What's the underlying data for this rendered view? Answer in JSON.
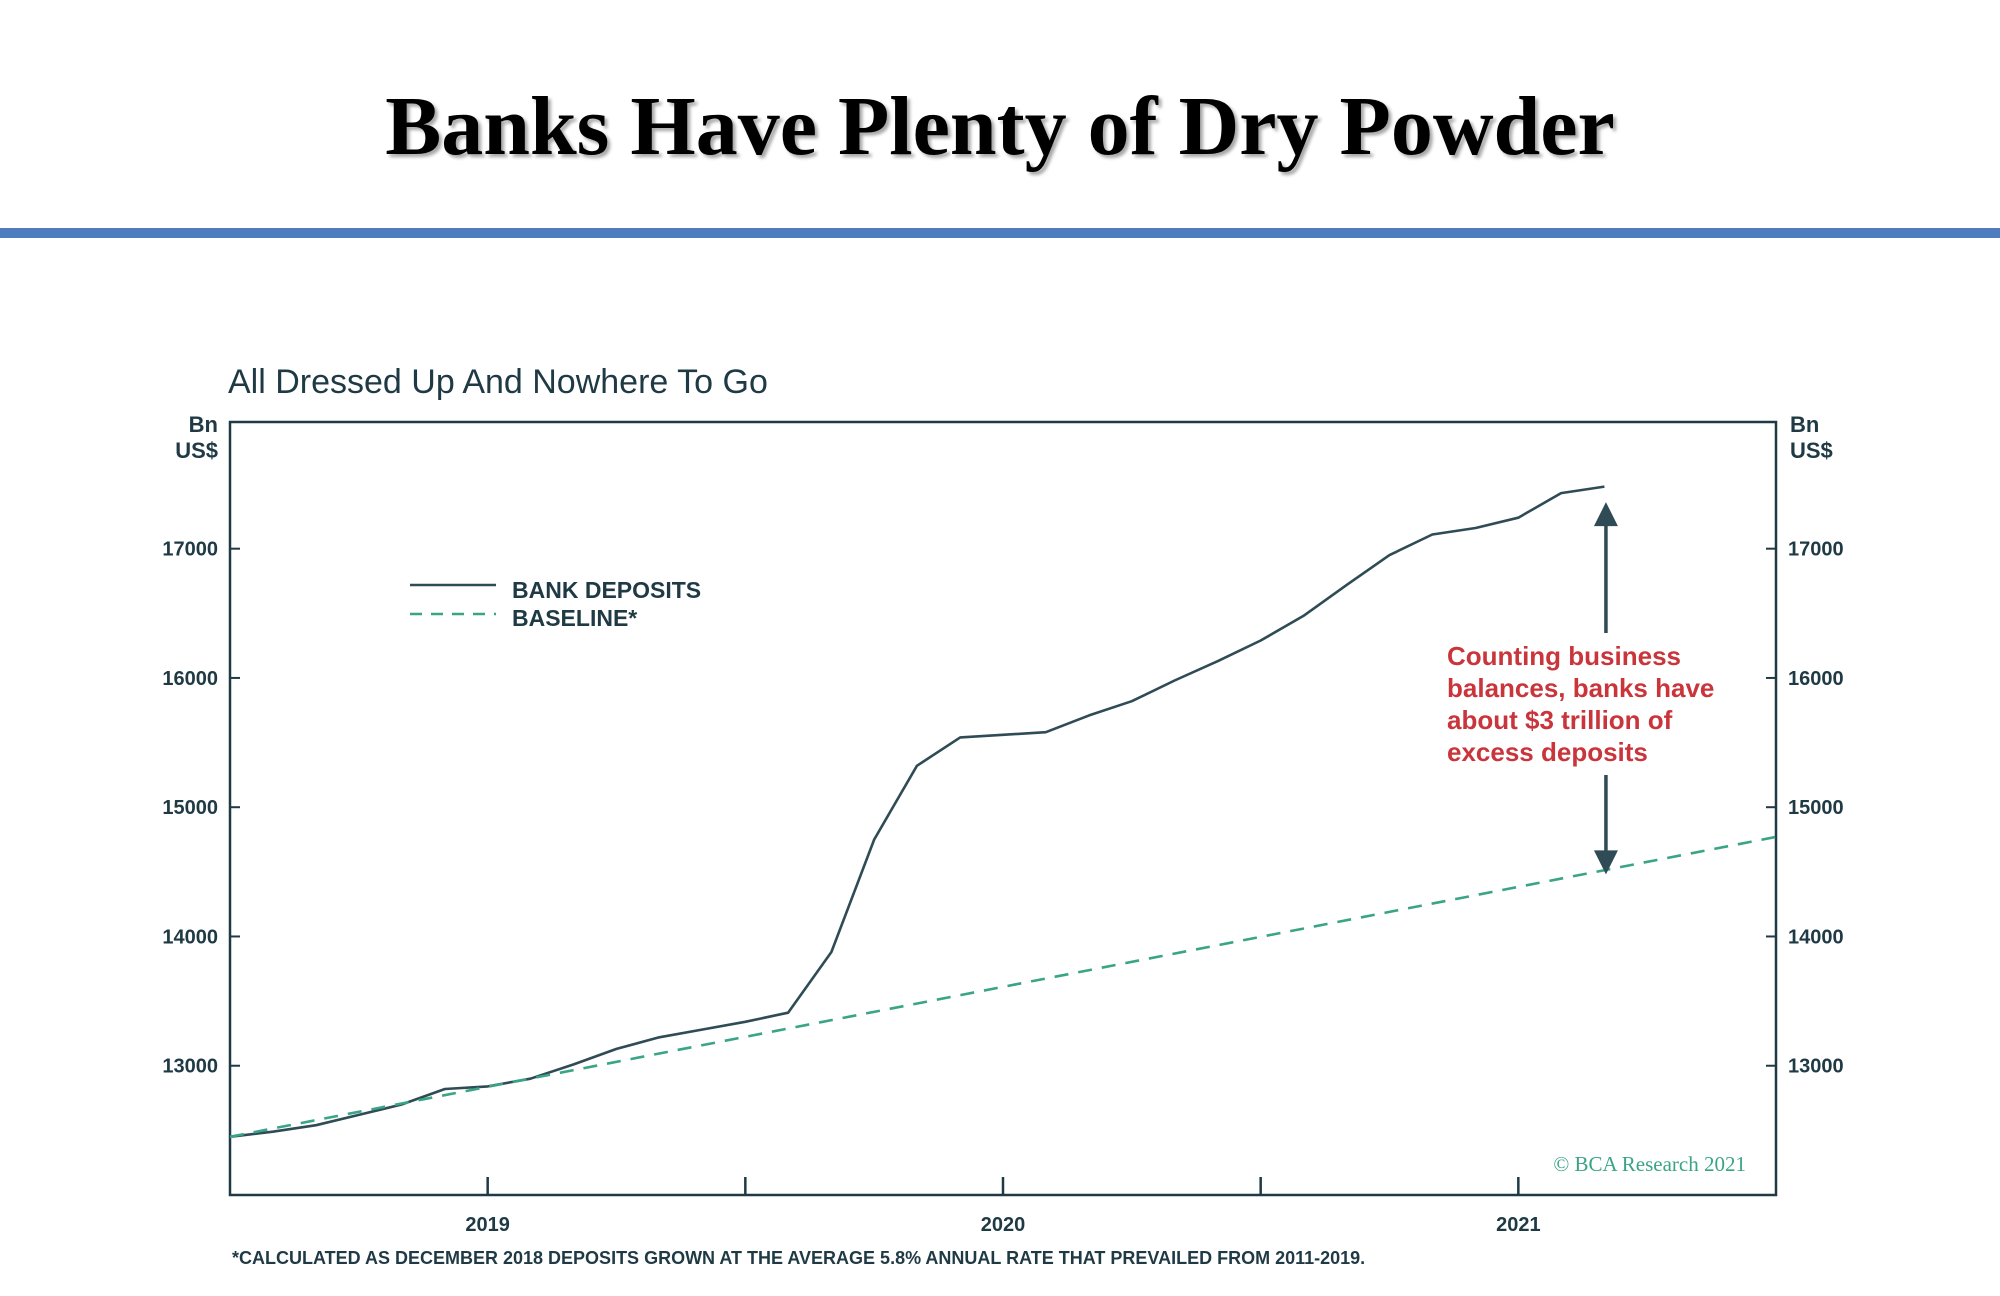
{
  "slide": {
    "title": "Banks Have Plenty of Dry Powder"
  },
  "colors": {
    "rule": "#4f7bbf",
    "deposits": "#2f4b55",
    "baseline": "#3aa486",
    "annotation": "#c9353b",
    "axis": "#1f3a44"
  },
  "chart_data": {
    "type": "line",
    "title": "All Dressed Up And Nowhere To Go",
    "ylabel_left": [
      "Bn",
      "US$"
    ],
    "ylabel_right": [
      "Bn",
      "US$"
    ],
    "ylim": [
      12000,
      17980
    ],
    "xlim": [
      2018.5,
      2021.5
    ],
    "yticks": [
      13000,
      14000,
      15000,
      16000,
      17000
    ],
    "ytick_labels": [
      "13000",
      "14000",
      "15000",
      "16000",
      "17000"
    ],
    "xticks": [
      2019,
      2019.5,
      2020,
      2020.5,
      2021
    ],
    "xtick_labels": [
      "2019",
      "",
      "2020",
      "",
      "2021"
    ],
    "grid": false,
    "legend_position": "upper-left",
    "series": [
      {
        "name": "BANK DEPOSITS",
        "style": "solid",
        "color": "#2f4b55",
        "x": [
          2018.5,
          2018.583,
          2018.667,
          2018.75,
          2018.833,
          2018.917,
          2019.0,
          2019.083,
          2019.167,
          2019.25,
          2019.333,
          2019.417,
          2019.5,
          2019.583,
          2019.667,
          2019.75,
          2019.833,
          2019.917,
          2020.0,
          2020.083,
          2020.167,
          2020.25,
          2020.333,
          2020.417,
          2020.5,
          2020.583,
          2020.667,
          2020.75,
          2020.833,
          2020.917,
          2021.0,
          2021.083,
          2021.167
        ],
        "values": [
          12450,
          12490,
          12540,
          12620,
          12700,
          12820,
          12840,
          12900,
          13010,
          13130,
          13220,
          13280,
          13340,
          13410,
          13880,
          14750,
          15320,
          15540,
          15560,
          15580,
          15710,
          15820,
          15980,
          16130,
          16290,
          16480,
          16720,
          16950,
          17110,
          17160,
          17240,
          17430,
          17480
        ]
      },
      {
        "name": "BASELINE*",
        "style": "dashed",
        "color": "#3aa486",
        "x": [
          2018.5,
          2021.5
        ],
        "values": [
          12450,
          14770
        ]
      }
    ],
    "annotation": {
      "lines": [
        "Counting business",
        "balances, banks have",
        "about $3 trillion of",
        "excess deposits"
      ],
      "arrow_x": 2021.17,
      "arrow_from": 14480,
      "arrow_to": 17360
    },
    "credit": "© BCA Research 2021",
    "footnote": "*CALCULATED AS DECEMBER 2018 DEPOSITS GROWN AT THE AVERAGE 5.8% ANNUAL RATE THAT PREVAILED FROM 2011-2019."
  }
}
